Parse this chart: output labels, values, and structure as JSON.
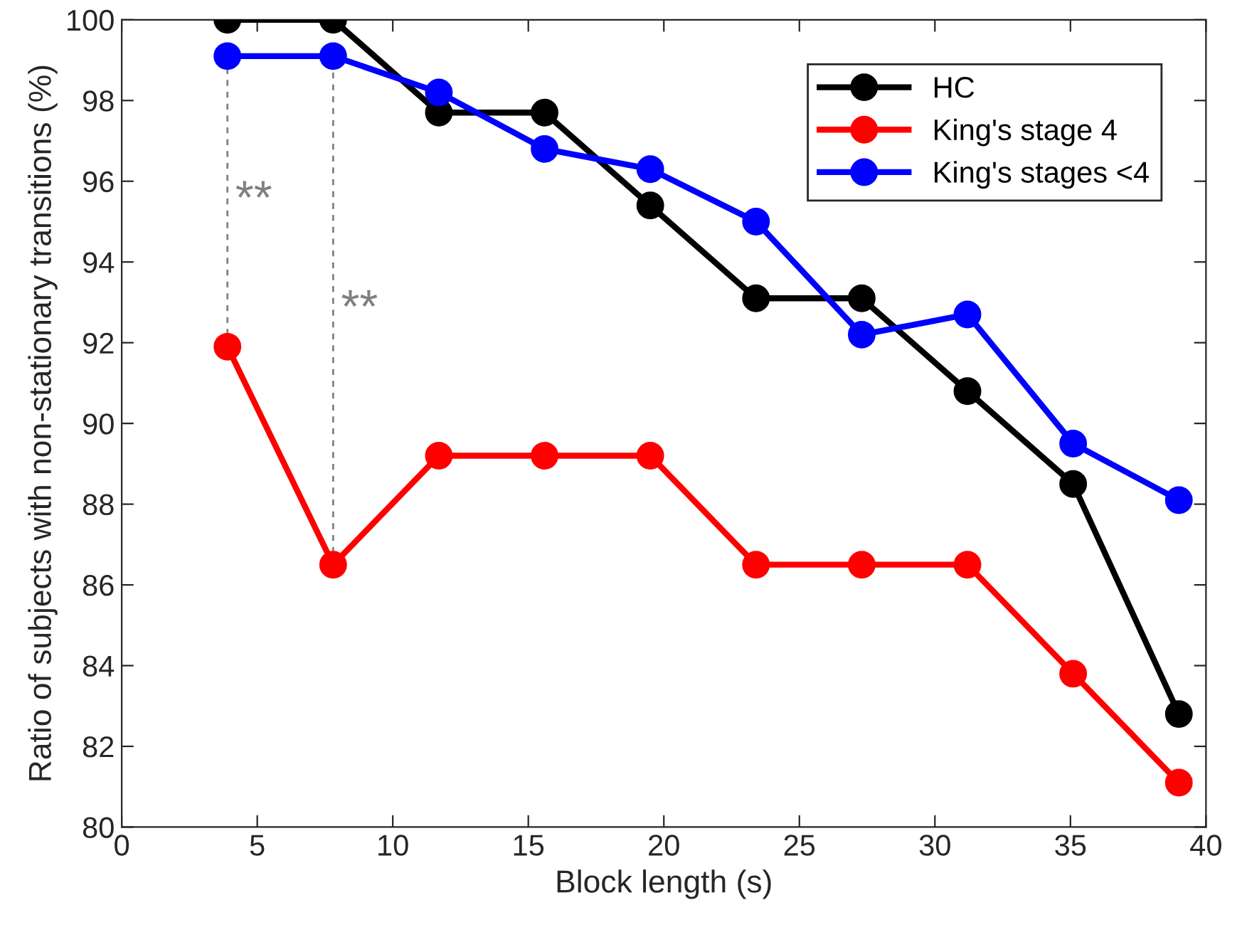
{
  "chart_data": {
    "type": "line",
    "xlabel": "Block length (s)",
    "ylabel": "Ratio of subjects with non-stationary transitions (%)",
    "x": [
      3.9,
      7.8,
      11.7,
      15.6,
      19.5,
      23.4,
      27.3,
      31.2,
      35.1,
      39.0
    ],
    "series": [
      {
        "name": "HC",
        "color": "#000000",
        "values": [
          100,
          100,
          97.7,
          97.7,
          95.4,
          93.1,
          93.1,
          90.8,
          88.5,
          82.8
        ]
      },
      {
        "name": "King's stage 4",
        "color": "#ff0000",
        "values": [
          91.9,
          86.5,
          89.2,
          89.2,
          89.2,
          86.5,
          86.5,
          86.5,
          83.8,
          81.1
        ]
      },
      {
        "name": "King's stages <4",
        "color": "#0000ff",
        "values": [
          99.1,
          99.1,
          98.2,
          96.8,
          96.3,
          95.0,
          92.2,
          92.7,
          89.5,
          88.1
        ]
      }
    ],
    "annotations": [
      "**",
      "**"
    ],
    "xlim": [
      0,
      40
    ],
    "xticks": [
      0,
      5,
      10,
      15,
      20,
      25,
      30,
      35,
      40
    ],
    "ylim": [
      80,
      100
    ],
    "yticks": [
      80,
      82,
      84,
      86,
      88,
      90,
      92,
      94,
      96,
      98,
      100
    ],
    "marker": "circle",
    "line_style": "solid",
    "grid": false,
    "legend": "top right"
  }
}
